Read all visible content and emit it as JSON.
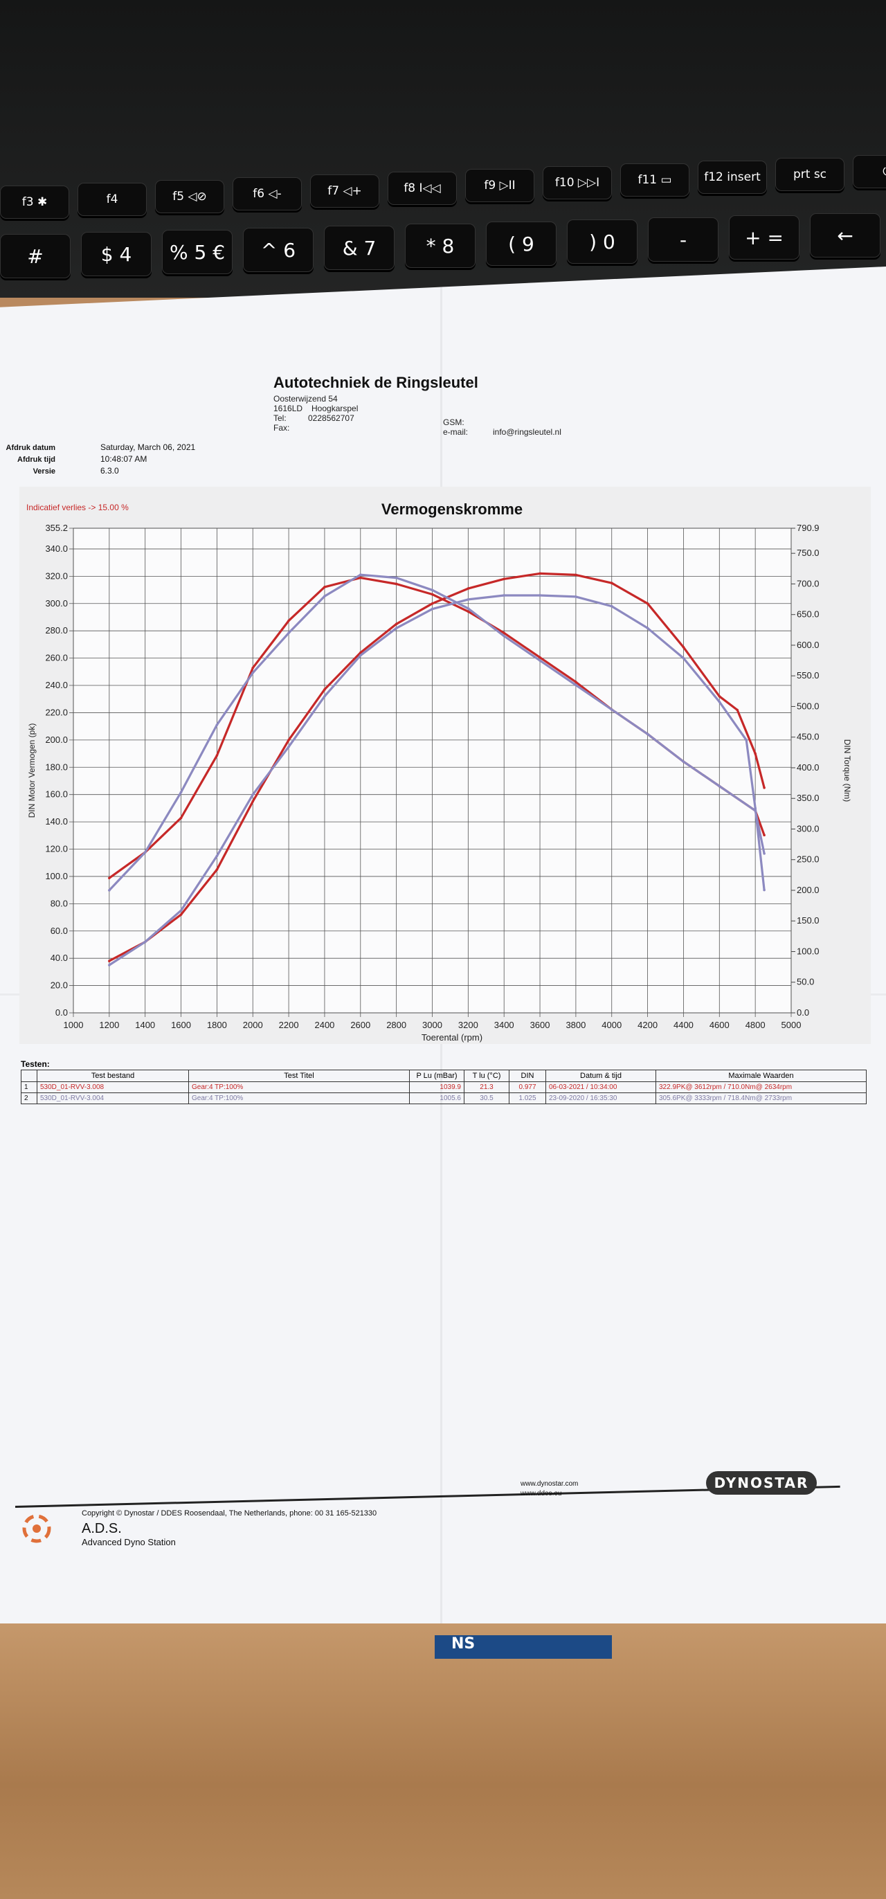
{
  "keyboard": {
    "fkeys": [
      {
        "fn": "f3",
        "sym": "✱"
      },
      {
        "fn": "f4",
        "sym": ""
      },
      {
        "fn": "f5",
        "sym": "◁⊘"
      },
      {
        "fn": "f6",
        "sym": "◁-"
      },
      {
        "fn": "f7",
        "sym": "◁+"
      },
      {
        "fn": "f8",
        "sym": "I◁◁"
      },
      {
        "fn": "f9",
        "sym": "▷II"
      },
      {
        "fn": "f10",
        "sym": "▷▷I"
      },
      {
        "fn": "f11",
        "sym": "▭"
      },
      {
        "fn": "f12",
        "sym": "insert"
      },
      {
        "fn": "",
        "sym": "prt sc"
      },
      {
        "fn": "",
        "sym": "⏻"
      }
    ],
    "numkeys": [
      "#",
      "$ 4",
      "% 5 €",
      "^ 6",
      "& 7",
      "* 8",
      "( 9",
      ") 0",
      "-",
      "+ =",
      "←"
    ]
  },
  "header": {
    "company": "Autotechniek de Ringsleutel",
    "street": "Oosterwijzend 54",
    "postal": "1616LD",
    "city": "Hoogkarspel",
    "tel_label": "Tel:",
    "tel": "0228562707",
    "fax_label": "Fax:",
    "gsm_label": "GSM:",
    "email_label": "e-mail:",
    "email": "info@ringsleutel.nl"
  },
  "meta": {
    "date_label": "Afdruk datum",
    "date": "Saturday, March 06, 2021",
    "time_label": "Afdruk tijd",
    "time": "10:48:07 AM",
    "version_label": "Versie",
    "version": "6.3.0"
  },
  "chart_data": {
    "type": "line",
    "title": "Vermogenskromme",
    "note": "Indicatief verlies -> 15.00 %",
    "xlabel": "Toerental (rpm)",
    "ylabel": "DIN Motor Vermogen (pk)",
    "y2label": "DIN Torque (Nm)",
    "xlim": [
      1000,
      5000
    ],
    "ylim": [
      0,
      355.2
    ],
    "y2lim": [
      0,
      790.9
    ],
    "grid": true,
    "x_ticks": [
      1000,
      1200,
      1400,
      1600,
      1800,
      2000,
      2200,
      2400,
      2600,
      2800,
      3000,
      3200,
      3400,
      3600,
      3800,
      4000,
      4200,
      4400,
      4600,
      4800,
      5000
    ],
    "y_ticks": [
      "0.0",
      "20.0",
      "40.0",
      "60.0",
      "80.0",
      "100.0",
      "120.0",
      "140.0",
      "160.0",
      "180.0",
      "200.0",
      "220.0",
      "240.0",
      "260.0",
      "280.0",
      "300.0",
      "320.0",
      "340.0",
      "355.2"
    ],
    "y2_ticks": [
      "0.0",
      "50.0",
      "100.0",
      "150.0",
      "200.0",
      "250.0",
      "300.0",
      "350.0",
      "400.0",
      "450.0",
      "500.0",
      "550.0",
      "600.0",
      "650.0",
      "700.0",
      "750.0",
      "790.9"
    ],
    "series": [
      {
        "color": "#c62828",
        "axis": "power",
        "points": [
          [
            1200,
            38
          ],
          [
            1400,
            52
          ],
          [
            1600,
            72
          ],
          [
            1800,
            105
          ],
          [
            2000,
            155
          ],
          [
            2200,
            200
          ],
          [
            2400,
            237
          ],
          [
            2600,
            264
          ],
          [
            2800,
            285
          ],
          [
            3000,
            300
          ],
          [
            3200,
            311
          ],
          [
            3400,
            318
          ],
          [
            3600,
            322
          ],
          [
            3800,
            321
          ],
          [
            4000,
            315
          ],
          [
            4200,
            300
          ],
          [
            4400,
            268
          ],
          [
            4600,
            232
          ],
          [
            4700,
            222
          ],
          [
            4800,
            190
          ],
          [
            4850,
            165
          ]
        ]
      },
      {
        "color": "#c62828",
        "axis": "torque",
        "points": [
          [
            1200,
            220
          ],
          [
            1400,
            262
          ],
          [
            1600,
            318
          ],
          [
            1800,
            420
          ],
          [
            2000,
            563
          ],
          [
            2200,
            640
          ],
          [
            2400,
            695
          ],
          [
            2600,
            710
          ],
          [
            2800,
            700
          ],
          [
            3000,
            683
          ],
          [
            3200,
            655
          ],
          [
            3400,
            620
          ],
          [
            3600,
            580
          ],
          [
            3800,
            540
          ],
          [
            4000,
            495
          ],
          [
            4200,
            455
          ],
          [
            4400,
            410
          ],
          [
            4600,
            370
          ],
          [
            4800,
            330
          ],
          [
            4850,
            290
          ]
        ]
      },
      {
        "color": "#8c89c0",
        "axis": "power",
        "points": [
          [
            1200,
            35
          ],
          [
            1400,
            52
          ],
          [
            1600,
            75
          ],
          [
            1800,
            115
          ],
          [
            2000,
            160
          ],
          [
            2200,
            195
          ],
          [
            2400,
            232
          ],
          [
            2600,
            262
          ],
          [
            2800,
            282
          ],
          [
            3000,
            296
          ],
          [
            3200,
            303
          ],
          [
            3400,
            306
          ],
          [
            3600,
            306
          ],
          [
            3800,
            305
          ],
          [
            4000,
            298
          ],
          [
            4200,
            282
          ],
          [
            4400,
            260
          ],
          [
            4600,
            228
          ],
          [
            4750,
            200
          ],
          [
            4800,
            150
          ],
          [
            4850,
            90
          ]
        ]
      },
      {
        "color": "#8c89c0",
        "axis": "torque",
        "points": [
          [
            1200,
            200
          ],
          [
            1400,
            262
          ],
          [
            1600,
            360
          ],
          [
            1800,
            470
          ],
          [
            2000,
            555
          ],
          [
            2200,
            620
          ],
          [
            2400,
            680
          ],
          [
            2600,
            715
          ],
          [
            2800,
            710
          ],
          [
            3000,
            690
          ],
          [
            3200,
            660
          ],
          [
            3400,
            615
          ],
          [
            3600,
            575
          ],
          [
            3800,
            535
          ],
          [
            4000,
            495
          ],
          [
            4200,
            455
          ],
          [
            4400,
            410
          ],
          [
            4600,
            370
          ],
          [
            4800,
            330
          ],
          [
            4850,
            260
          ]
        ]
      }
    ]
  },
  "tests": {
    "title": "Testen:",
    "columns": [
      "",
      "Test bestand",
      "Test Titel",
      "P Lu (mBar)",
      "T lu (°C)",
      "DIN",
      "Datum & tijd",
      "Maximale Waarden"
    ],
    "rows": [
      {
        "num": "1",
        "file": "530D_01-RVV-3.008",
        "titel": "Gear:4 TP:100%",
        "p": "1039.9",
        "t": "21.3",
        "din": "0.977",
        "datum": "06-03-2021 / 10:34:00",
        "max": "322.9PK@ 3612rpm / 710.0Nm@ 2634rpm"
      },
      {
        "num": "2",
        "file": "530D_01-RVV-3.004",
        "titel": "Gear:4 TP:100%",
        "p": "1005.6",
        "t": "30.5",
        "din": "1.025",
        "datum": "23-09-2020 / 16:35:30",
        "max": "305.6PK@ 3333rpm / 718.4Nm@ 2733rpm"
      }
    ]
  },
  "footer": {
    "copyright": "Copyright © Dynostar / DDES Roosendaal, The Netherlands, phone: 00 31 165-521330",
    "ads": "A.D.S.",
    "ads_sub": "Advanced Dyno Station",
    "url1": "www.dynostar.com",
    "url2": "www.ddes.eu",
    "brand": "DYNOSTAR"
  }
}
